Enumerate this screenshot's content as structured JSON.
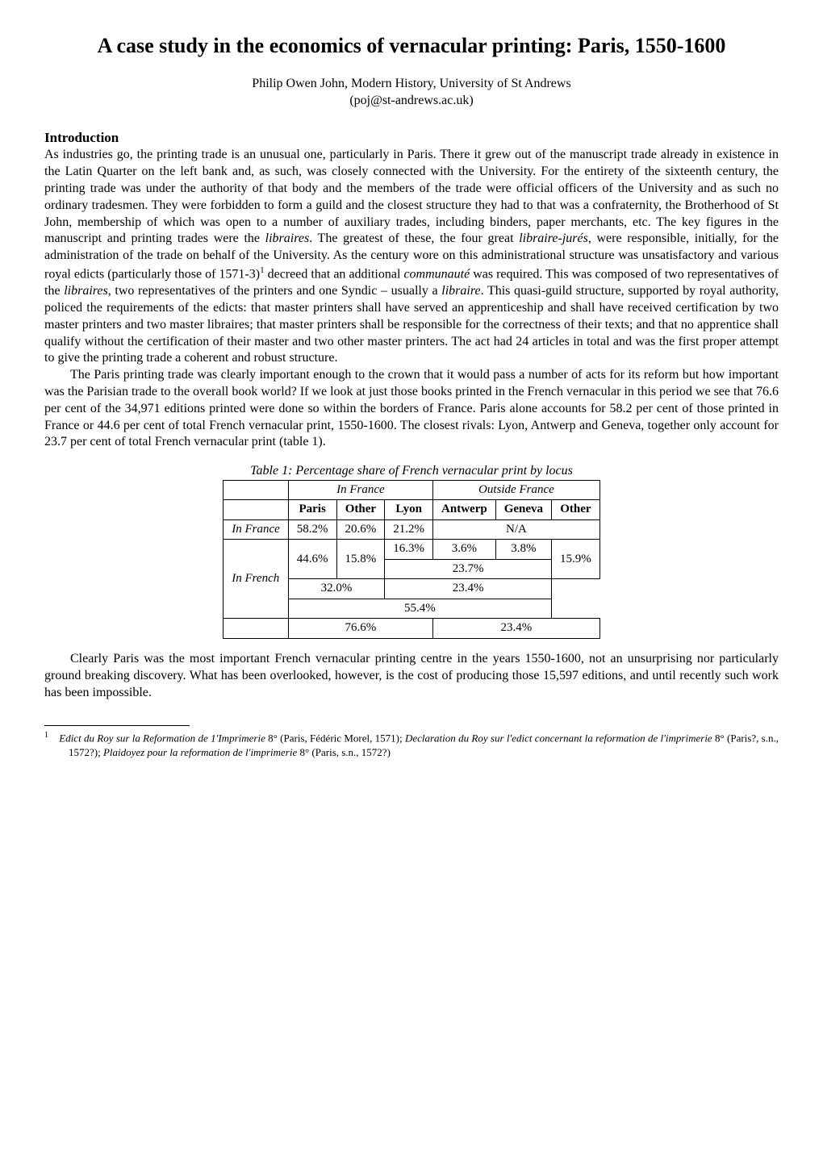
{
  "title": "A case study in the economics of vernacular printing: Paris, 1550-1600",
  "author_line": "Philip Owen John, Modern History, University of St Andrews",
  "author_email": "(poj@st-andrews.ac.uk)",
  "section_heading": "Introduction",
  "para1_a": "As industries go, the printing trade is an unusual one, particularly in Paris.  There it grew out of the manuscript trade already in existence in the Latin Quarter on the left bank and, as such, was closely connected with the University.  For the entirety of the sixteenth century, the printing trade was under the authority of that body and the members of the trade were official officers of the University and as such no ordinary tradesmen.  They were forbidden to form a guild and the closest structure they had to that was a confraternity, the Brotherhood of St John, membership of which was open to a number of auxiliary trades, including binders, paper merchants, etc.  The key figures in the manuscript and printing trades were the ",
  "para1_i1": "libraires",
  "para1_b": ".  The greatest of these, the four great ",
  "para1_i2": "libraire-jurés",
  "para1_c": ", were responsible, initially, for the administration of the trade on behalf of the University.  As the century wore on this administrational structure was unsatisfactory and various royal edicts (particularly those of 1571-3)",
  "para1_d": " decreed that an additional ",
  "para1_i3": "communauté",
  "para1_e": " was required.  This was composed of two representatives of the ",
  "para1_i4": "libraires",
  "para1_f": ", two representatives of the printers and one Syndic – usually a ",
  "para1_i5": "libraire",
  "para1_g": ".  This quasi-guild structure, supported by royal authority, policed the requirements of the edicts: that master printers shall have served an apprenticeship and shall have received certification by two master printers and two master libraires; that master printers shall be responsible for the correctness of their texts; and that no apprentice shall qualify without the certification of their master and two other master printers.  The act had 24 articles in total and was the first proper attempt to give the printing trade a coherent and robust structure.",
  "para2": "The Paris printing trade was clearly important enough to the crown that it would pass a number of acts for its reform but how important was the Parisian trade to the overall book world?  If we look at just those books printed in the French vernacular in this period we see that 76.6 per cent of the 34,971 editions printed were done so within the borders of France.  Paris alone accounts for 58.2 per cent of those printed in France or 44.6 per cent of total French vernacular print, 1550-1600.  The closest rivals: Lyon, Antwerp and Geneva, together only account for 23.7 per cent of total French vernacular print (table 1).",
  "table": {
    "caption": "Table 1: Percentage share of French vernacular print by locus",
    "group_headers": [
      "In France",
      "Outside France"
    ],
    "col_headers": [
      "Paris",
      "Other",
      "Lyon",
      "Antwerp",
      "Geneva",
      "Other"
    ],
    "row_labels": [
      "In France",
      "In French"
    ],
    "r1": {
      "paris": "58.2%",
      "otherF": "20.6%",
      "lyon": "21.2%",
      "outside": "N/A"
    },
    "r2a": {
      "paris": "44.6%",
      "otherF": "15.8%",
      "lyon": "16.3%",
      "antwerp": "3.6%",
      "geneva": "3.8%",
      "otherO": "15.9%"
    },
    "r2b_mid": "23.7%",
    "r2c_left": "32.0%",
    "r2c_right": "23.4%",
    "r2d_span": "55.4%",
    "r3_left": "76.6%",
    "r3_right": "23.4%"
  },
  "para3": "Clearly Paris was the most important French vernacular printing centre in the years 1550-1600, not an unsurprising nor particularly ground breaking discovery.  What has been overlooked, however, is the cost of producing those 15,597 editions, and until recently such work has been impossible.",
  "footnote": {
    "marker": "1",
    "i1": "Edict du Roy sur la Reformation de 1'Imprimerie",
    "t1": " 8° (Paris, Fédéric Morel, 1571); ",
    "i2": "Declaration du Roy sur l'edict concernant la reformation de l'imprimerie",
    "t2": " 8° (Paris?, s.n., 1572?); ",
    "i3": "Plaidoyez pour la reformation de l'imprimerie",
    "t3": " 8° (Paris, s.n., 1572?)"
  },
  "colors": {
    "text": "#000000",
    "background": "#ffffff",
    "border": "#000000"
  },
  "typography": {
    "body_fontsize_pt": 12,
    "title_fontsize_pt": 20,
    "footnote_fontsize_pt": 10,
    "font_family": "Times New Roman"
  }
}
